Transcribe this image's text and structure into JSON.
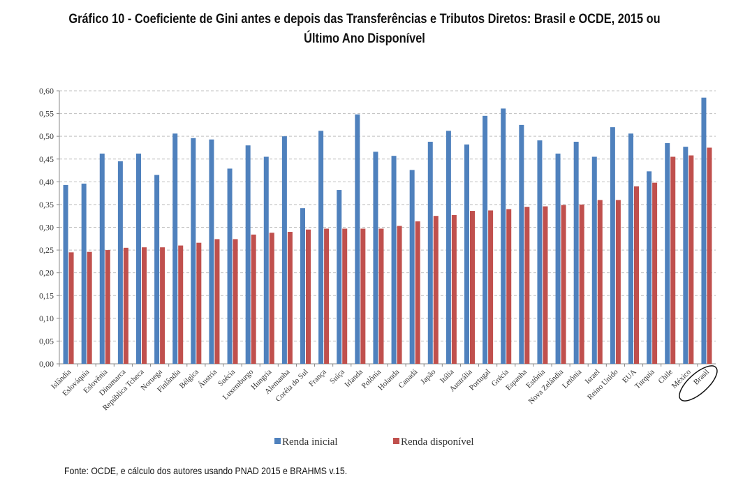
{
  "title": "Gráfico 10 - Coeficiente de Gini antes e depois das Transferências e Tributos Diretos: Brasil e OCDE, 2015 ou Último Ano Disponível",
  "source": "Fonte: OCDE, e cálculo dos autores usando PNAD 2015 e BRAHMS v.15.",
  "colors": {
    "renda_inicial": "#4f81bd",
    "renda_disponivel": "#c0504d",
    "grid": "#bfbfbf"
  },
  "chart_data": {
    "type": "bar",
    "title": "Gráfico 10 - Coeficiente de Gini antes e depois das Transferências e Tributos Diretos: Brasil e OCDE, 2015 ou Último Ano Disponível",
    "xlabel": "",
    "ylabel": "",
    "ylim": [
      0,
      0.6
    ],
    "yticks": [
      "0,00",
      "0,05",
      "0,10",
      "0,15",
      "0,20",
      "0,25",
      "0,30",
      "0,35",
      "0,40",
      "0,45",
      "0,50",
      "0,55",
      "0,60"
    ],
    "grid": true,
    "legend_position": "bottom",
    "highlighted_category": "Brasil",
    "categories": [
      "Islândia",
      "Eslováquia",
      "Eslovênia",
      "Dinamarca",
      "República Tcheca",
      "Noruega",
      "Finlândia",
      "Bélgica",
      "Áustria",
      "Suécia",
      "Luxemburgo",
      "Hungria",
      "Alemanha",
      "Coréia do Sul",
      "França",
      "Suíça",
      "Irlanda",
      "Polônia",
      "Holanda",
      "Canadá",
      "Japão",
      "Itália",
      "Austrália",
      "Portugal",
      "Grécia",
      "Espanha",
      "Estônia",
      "Nova Zelândia",
      "Letônia",
      "Israel",
      "Reino Unido",
      "EUA",
      "Turquia",
      "Chile",
      "México",
      "Brasil"
    ],
    "series": [
      {
        "name": "Renda inicial",
        "color": "#4f81bd",
        "values": [
          0.393,
          0.396,
          0.462,
          0.445,
          0.462,
          0.415,
          0.506,
          0.496,
          0.493,
          0.429,
          0.48,
          0.455,
          0.5,
          0.342,
          0.512,
          0.382,
          0.548,
          0.466,
          0.457,
          0.426,
          0.488,
          0.512,
          0.482,
          0.545,
          0.561,
          0.525,
          0.491,
          0.462,
          0.488,
          0.455,
          0.52,
          0.506,
          0.423,
          0.485,
          0.477,
          0.585
        ]
      },
      {
        "name": "Renda disponível",
        "color": "#c0504d",
        "values": [
          0.245,
          0.246,
          0.25,
          0.255,
          0.256,
          0.256,
          0.26,
          0.266,
          0.274,
          0.274,
          0.284,
          0.288,
          0.29,
          0.295,
          0.297,
          0.297,
          0.297,
          0.297,
          0.303,
          0.313,
          0.325,
          0.327,
          0.336,
          0.337,
          0.34,
          0.345,
          0.346,
          0.349,
          0.35,
          0.36,
          0.36,
          0.39,
          0.398,
          0.455,
          0.458,
          0.475
        ]
      }
    ]
  }
}
